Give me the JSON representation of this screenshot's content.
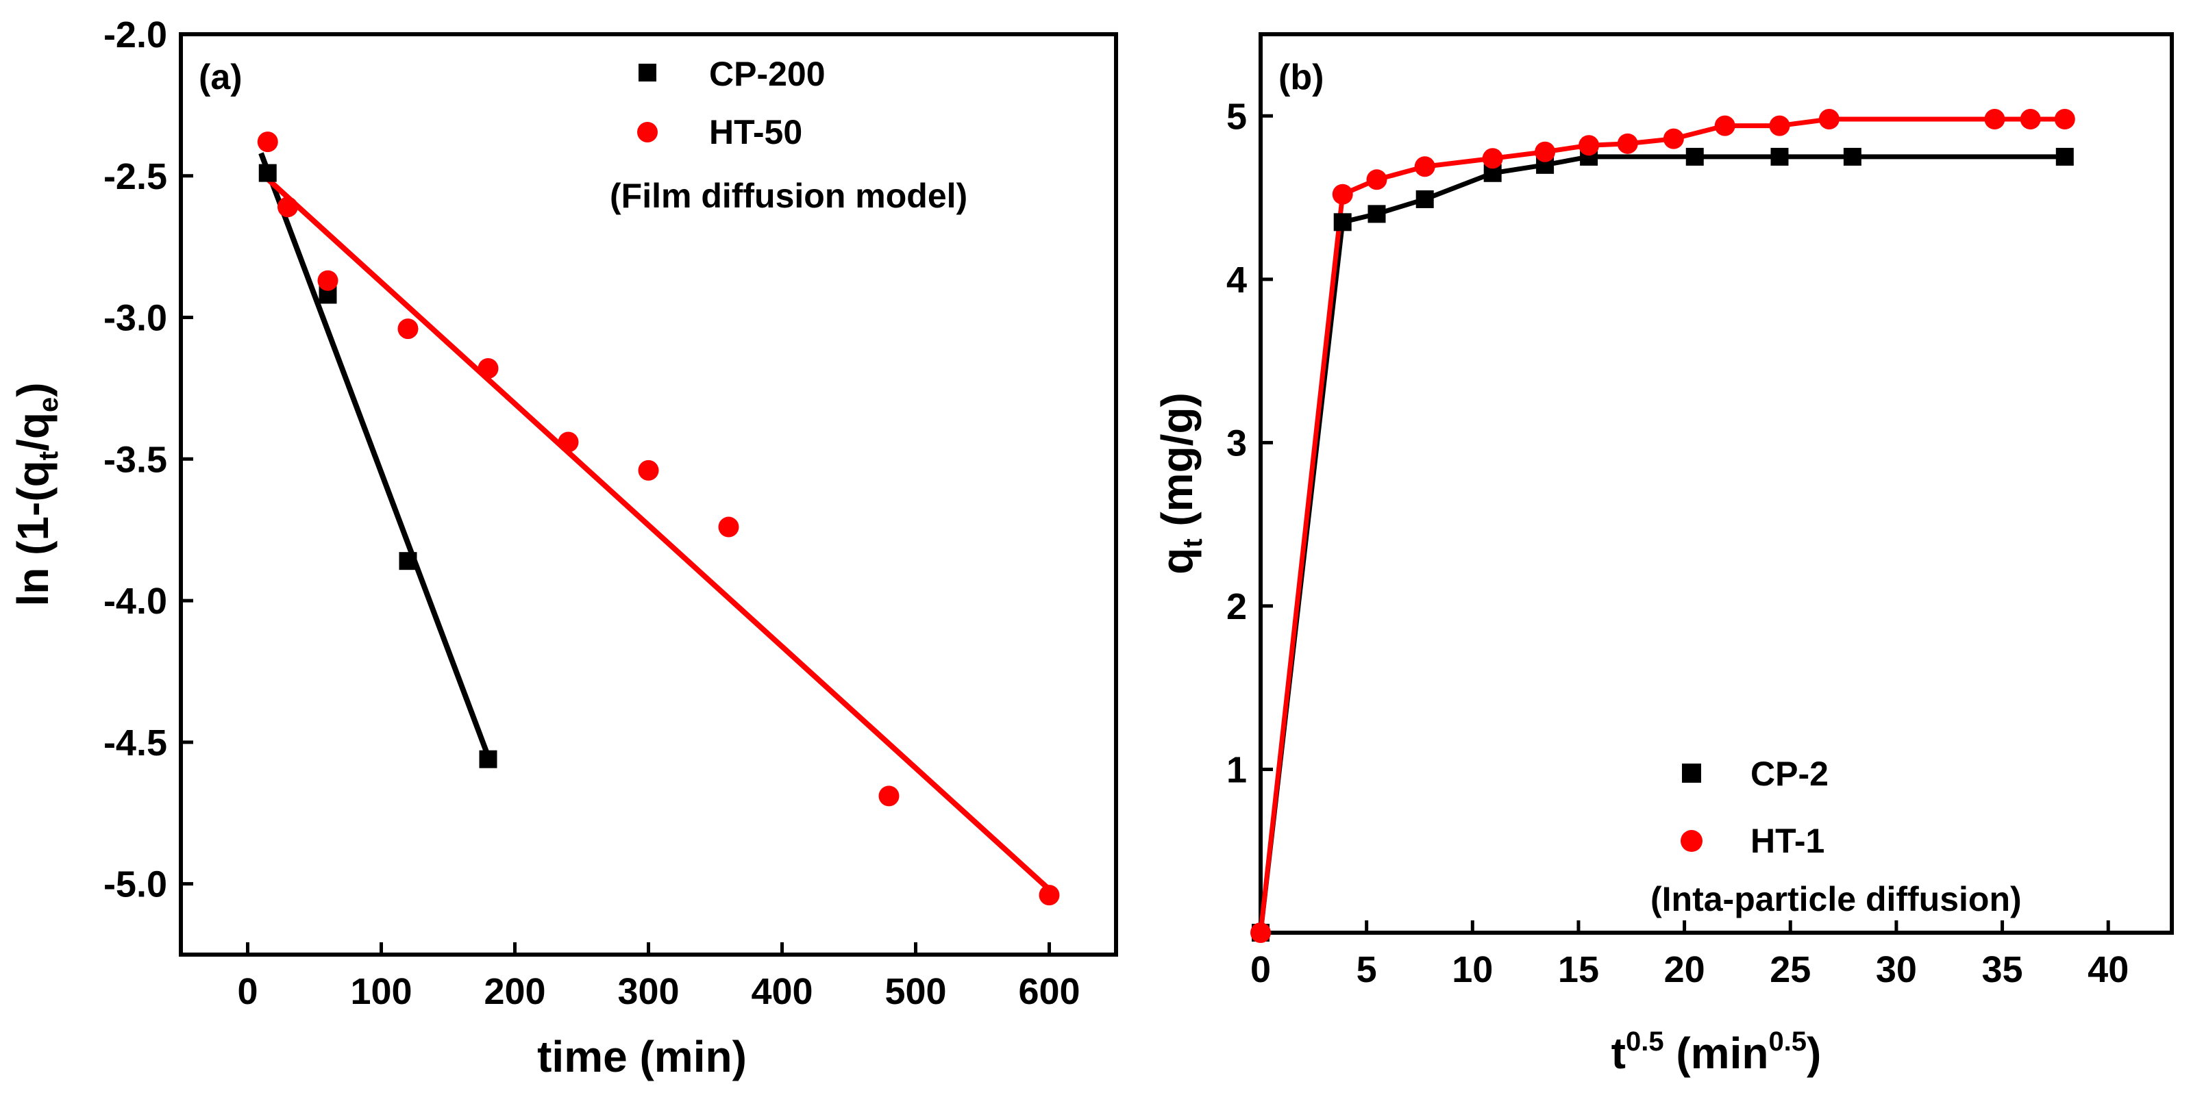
{
  "chart_data": [
    {
      "type": "scatter",
      "panel_label": "(a)",
      "xlabel": "time (min)",
      "ylabel_parts": {
        "prefix": "ln (1-(q",
        "sub1": "t",
        "mid": "/q",
        "sub2": "e",
        "suffix": ")"
      },
      "xlim": [
        -50,
        650
      ],
      "ylim": [
        -5.25,
        -2.0
      ],
      "xticks": [
        0,
        100,
        200,
        300,
        400,
        500,
        600
      ],
      "yticks": [
        -2.0,
        -2.5,
        -3.0,
        -3.5,
        -4.0,
        -4.5,
        -5.0
      ],
      "xtick_labels": [
        "0",
        "100",
        "200",
        "300",
        "400",
        "500",
        "600"
      ],
      "ytick_labels": [
        "-2.0",
        "-2.5",
        "-3.0",
        "-3.5",
        "-4.0",
        "-4.5",
        "-5.0"
      ],
      "annotation": "(Film diffusion model)",
      "legend_position": "top-right",
      "series": [
        {
          "name": "CP-200",
          "color": "#000000",
          "marker": "square",
          "x": [
            15,
            60,
            120,
            180
          ],
          "y": [
            -2.49,
            -2.92,
            -3.86,
            -4.56
          ],
          "fit": {
            "x": [
              10,
              180
            ],
            "y": [
              -2.42,
              -4.55
            ]
          }
        },
        {
          "name": "HT-50",
          "color": "#ff0000",
          "marker": "circle",
          "x": [
            15,
            30,
            60,
            120,
            180,
            240,
            300,
            360,
            480,
            600
          ],
          "y": [
            -2.38,
            -2.61,
            -2.87,
            -3.04,
            -3.18,
            -3.44,
            -3.54,
            -3.74,
            -4.69,
            -5.04
          ],
          "fit": {
            "x": [
              10,
              600
            ],
            "y": [
              -2.49,
              -5.02
            ]
          }
        }
      ]
    },
    {
      "type": "line",
      "panel_label": "(b)",
      "xlabel_parts": {
        "base": "t",
        "sup1": "0.5",
        "mid": " (min",
        "sup2": "0.5",
        "suffix": ")"
      },
      "ylabel_parts": {
        "prefix": "q",
        "sub": "t",
        "suffix": " (mg/g)"
      },
      "xlim": [
        0,
        43
      ],
      "ylim": [
        0,
        5.5
      ],
      "xticks": [
        0,
        5,
        10,
        15,
        20,
        25,
        30,
        35,
        40
      ],
      "yticks": [
        1,
        2,
        3,
        4,
        5
      ],
      "xtick_labels": [
        "0",
        "5",
        "10",
        "15",
        "20",
        "25",
        "30",
        "35",
        "40"
      ],
      "ytick_labels": [
        "1",
        "2",
        "3",
        "4",
        "5"
      ],
      "annotation": "(Inta-particle diffusion)",
      "legend_position": "bottom-right",
      "series": [
        {
          "name": "CP-2",
          "color": "#000000",
          "marker": "square",
          "x": [
            0,
            3.87,
            5.48,
            7.75,
            10.95,
            13.42,
            15.49,
            20.49,
            24.49,
            27.93,
            37.95
          ],
          "y": [
            0,
            4.35,
            4.4,
            4.49,
            4.65,
            4.7,
            4.75,
            4.75,
            4.75,
            4.75,
            4.75
          ]
        },
        {
          "name": "HT-1",
          "color": "#ff0000",
          "marker": "circle",
          "x": [
            0,
            3.87,
            5.48,
            7.75,
            10.95,
            13.42,
            15.49,
            17.32,
            19.49,
            21.91,
            24.49,
            26.83,
            34.64,
            36.33,
            37.95
          ],
          "y": [
            0,
            4.52,
            4.61,
            4.69,
            4.74,
            4.78,
            4.82,
            4.83,
            4.86,
            4.94,
            4.94,
            4.98,
            4.98,
            4.98,
            4.98
          ]
        }
      ]
    }
  ]
}
